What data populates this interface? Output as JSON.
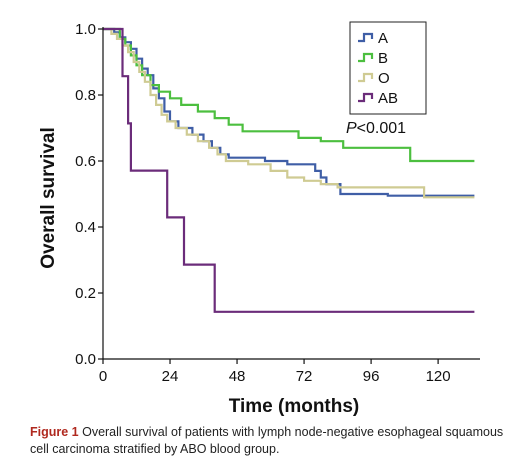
{
  "chart_data": {
    "type": "line",
    "subtype": "kaplan-meier step",
    "xlabel": "Time (months)",
    "ylabel": "Overall survival",
    "xlim": [
      0,
      135
    ],
    "ylim": [
      0,
      1.0
    ],
    "xticks": [
      0,
      24,
      48,
      72,
      96,
      120
    ],
    "yticks": [
      0.0,
      0.2,
      0.4,
      0.6,
      0.8,
      1.0
    ],
    "ytick_labels": [
      "0.0",
      "0.2",
      "0.4",
      "0.6",
      "0.8",
      "1.0"
    ],
    "grid": false,
    "legend_position": "top-right",
    "annotation": {
      "italic": "P",
      "rest": "<0.001",
      "x": 87,
      "y": 0.685
    },
    "series": [
      {
        "name": "A",
        "color": "#3f5ea6",
        "points": [
          [
            0,
            1.0
          ],
          [
            4,
            1.0
          ],
          [
            4,
            0.99
          ],
          [
            6,
            0.99
          ],
          [
            6,
            0.975
          ],
          [
            8,
            0.975
          ],
          [
            8,
            0.96
          ],
          [
            10,
            0.96
          ],
          [
            10,
            0.94
          ],
          [
            12,
            0.94
          ],
          [
            12,
            0.91
          ],
          [
            14,
            0.91
          ],
          [
            14,
            0.88
          ],
          [
            16,
            0.88
          ],
          [
            16,
            0.86
          ],
          [
            18,
            0.86
          ],
          [
            18,
            0.82
          ],
          [
            20,
            0.82
          ],
          [
            20,
            0.79
          ],
          [
            22,
            0.79
          ],
          [
            22,
            0.75
          ],
          [
            24,
            0.75
          ],
          [
            24,
            0.72
          ],
          [
            27,
            0.72
          ],
          [
            27,
            0.7
          ],
          [
            32,
            0.7
          ],
          [
            32,
            0.68
          ],
          [
            36,
            0.68
          ],
          [
            36,
            0.66
          ],
          [
            39,
            0.66
          ],
          [
            39,
            0.64
          ],
          [
            42,
            0.64
          ],
          [
            42,
            0.62
          ],
          [
            45,
            0.62
          ],
          [
            45,
            0.61
          ],
          [
            58,
            0.61
          ],
          [
            58,
            0.6
          ],
          [
            66,
            0.6
          ],
          [
            66,
            0.59
          ],
          [
            76,
            0.59
          ],
          [
            76,
            0.57
          ],
          [
            78,
            0.57
          ],
          [
            78,
            0.55
          ],
          [
            80,
            0.55
          ],
          [
            80,
            0.53
          ],
          [
            85,
            0.53
          ],
          [
            85,
            0.5
          ],
          [
            102,
            0.5
          ],
          [
            102,
            0.495
          ],
          [
            133,
            0.495
          ]
        ]
      },
      {
        "name": "B",
        "color": "#4cbf3f",
        "points": [
          [
            0,
            1.0
          ],
          [
            6,
            1.0
          ],
          [
            6,
            0.97
          ],
          [
            8,
            0.97
          ],
          [
            8,
            0.95
          ],
          [
            10,
            0.95
          ],
          [
            10,
            0.92
          ],
          [
            12,
            0.92
          ],
          [
            12,
            0.89
          ],
          [
            14,
            0.89
          ],
          [
            14,
            0.86
          ],
          [
            17,
            0.86
          ],
          [
            17,
            0.83
          ],
          [
            20,
            0.83
          ],
          [
            20,
            0.81
          ],
          [
            24,
            0.81
          ],
          [
            24,
            0.79
          ],
          [
            28,
            0.79
          ],
          [
            28,
            0.77
          ],
          [
            34,
            0.77
          ],
          [
            34,
            0.75
          ],
          [
            40,
            0.75
          ],
          [
            40,
            0.73
          ],
          [
            45,
            0.73
          ],
          [
            45,
            0.71
          ],
          [
            50,
            0.71
          ],
          [
            50,
            0.69
          ],
          [
            70,
            0.69
          ],
          [
            70,
            0.67
          ],
          [
            78,
            0.67
          ],
          [
            78,
            0.66
          ],
          [
            86,
            0.66
          ],
          [
            86,
            0.64
          ],
          [
            110,
            0.64
          ],
          [
            110,
            0.6
          ],
          [
            133,
            0.6
          ]
        ]
      },
      {
        "name": "O",
        "color": "#cfcb93",
        "points": [
          [
            0,
            1.0
          ],
          [
            3,
            1.0
          ],
          [
            3,
            0.985
          ],
          [
            5,
            0.985
          ],
          [
            5,
            0.97
          ],
          [
            7,
            0.97
          ],
          [
            7,
            0.95
          ],
          [
            9,
            0.95
          ],
          [
            9,
            0.93
          ],
          [
            11,
            0.93
          ],
          [
            11,
            0.9
          ],
          [
            13,
            0.9
          ],
          [
            13,
            0.87
          ],
          [
            15,
            0.87
          ],
          [
            15,
            0.84
          ],
          [
            17,
            0.84
          ],
          [
            17,
            0.8
          ],
          [
            19,
            0.8
          ],
          [
            19,
            0.77
          ],
          [
            21,
            0.77
          ],
          [
            21,
            0.74
          ],
          [
            23,
            0.74
          ],
          [
            23,
            0.72
          ],
          [
            26,
            0.72
          ],
          [
            26,
            0.7
          ],
          [
            30,
            0.7
          ],
          [
            30,
            0.68
          ],
          [
            34,
            0.68
          ],
          [
            34,
            0.66
          ],
          [
            38,
            0.66
          ],
          [
            38,
            0.64
          ],
          [
            41,
            0.64
          ],
          [
            41,
            0.62
          ],
          [
            44,
            0.62
          ],
          [
            44,
            0.6
          ],
          [
            52,
            0.6
          ],
          [
            52,
            0.59
          ],
          [
            60,
            0.59
          ],
          [
            60,
            0.57
          ],
          [
            66,
            0.57
          ],
          [
            66,
            0.55
          ],
          [
            72,
            0.55
          ],
          [
            72,
            0.54
          ],
          [
            78,
            0.54
          ],
          [
            78,
            0.53
          ],
          [
            84,
            0.53
          ],
          [
            84,
            0.52
          ],
          [
            115,
            0.52
          ],
          [
            115,
            0.49
          ],
          [
            133,
            0.49
          ]
        ]
      },
      {
        "name": "AB",
        "color": "#6b2c7a",
        "points": [
          [
            0,
            1.0
          ],
          [
            7,
            1.0
          ],
          [
            7,
            0.857
          ],
          [
            9,
            0.857
          ],
          [
            9,
            0.714
          ],
          [
            10,
            0.714
          ],
          [
            10,
            0.571
          ],
          [
            23,
            0.571
          ],
          [
            23,
            0.429
          ],
          [
            29,
            0.429
          ],
          [
            29,
            0.286
          ],
          [
            40,
            0.286
          ],
          [
            40,
            0.143
          ],
          [
            133,
            0.143
          ]
        ]
      }
    ]
  },
  "caption": {
    "label": "Figure 1",
    "text": " Overall survival of patients with lymph node-negative esophageal squamous cell carcinoma stratified by ABO blood group."
  }
}
